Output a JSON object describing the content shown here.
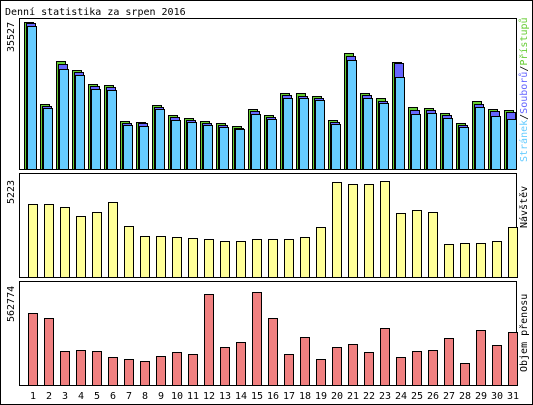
{
  "title": "Denní statistika za srpen 2016",
  "colors": {
    "background": "#ffffff",
    "frame": "#000000",
    "pages": "#66ccff",
    "files": "#6666ff",
    "hits": "#66cc33",
    "visits": "#ffff99",
    "bandwidth": "#f08080",
    "weekend_label": "#669933"
  },
  "chart_data": [
    {
      "type": "bar",
      "ylabel": "35527",
      "legend": {
        "hits": "Přístupů",
        "sep1": "/",
        "files": "Souborů",
        "sep2": "/",
        "pages": "Stránek"
      },
      "ylim": [
        0,
        35527
      ],
      "series": [
        {
          "key": "hits",
          "values": [
            34900,
            15500,
            25500,
            23500,
            20100,
            19900,
            11300,
            11200,
            15200,
            12700,
            12100,
            11300,
            10800,
            10200,
            14300,
            12900,
            18100,
            18000,
            17400,
            11600,
            27400,
            18100,
            16800,
            25400,
            14600,
            14500,
            13300,
            10900,
            16000,
            14200,
            14000
          ]
        },
        {
          "key": "files",
          "values": [
            34500,
            15000,
            24900,
            23000,
            19600,
            19400,
            10900,
            10800,
            14800,
            12300,
            11700,
            10900,
            10400,
            9800,
            13800,
            12400,
            17500,
            17400,
            16800,
            11100,
            26800,
            17500,
            16200,
            25100,
            14000,
            13900,
            12700,
            10400,
            15500,
            13700,
            13600
          ]
        },
        {
          "key": "pages",
          "values": [
            33800,
            14400,
            23700,
            22300,
            19000,
            18800,
            10400,
            10300,
            14100,
            11700,
            11200,
            10400,
            9900,
            9400,
            13100,
            11900,
            16800,
            16700,
            16300,
            10600,
            25900,
            16800,
            15600,
            21700,
            13100,
            13200,
            12100,
            9900,
            14600,
            12600,
            11900
          ]
        }
      ]
    },
    {
      "type": "bar",
      "ylabel": "5223",
      "legend": {
        "visits": "Návštěv"
      },
      "ylim": [
        0,
        5223
      ],
      "series": [
        {
          "key": "visits",
          "values": [
            3870,
            3870,
            3690,
            3200,
            3450,
            3980,
            2690,
            2150,
            2150,
            2090,
            2060,
            1990,
            1910,
            1880,
            2000,
            1990,
            2000,
            2100,
            2660,
            5000,
            4920,
            4920,
            5080,
            3400,
            3560,
            3420,
            1720,
            1790,
            1800,
            1880,
            2640
          ]
        }
      ]
    },
    {
      "type": "bar",
      "ylabel": "562774",
      "legend": {
        "bandwidth": "Objem přenosu"
      },
      "ylim": [
        0,
        562774
      ],
      "series": [
        {
          "key": "bandwidth",
          "values": [
            420000,
            390000,
            200000,
            202000,
            200000,
            160000,
            150000,
            140000,
            170000,
            190000,
            180000,
            530000,
            220000,
            250000,
            540000,
            390000,
            180000,
            280000,
            150000,
            220000,
            240000,
            190000,
            330000,
            160000,
            200000,
            205000,
            270000,
            130000,
            320000,
            230000,
            310000
          ]
        }
      ]
    }
  ],
  "days": [
    {
      "label": "1",
      "weekend": false
    },
    {
      "label": "2",
      "weekend": false
    },
    {
      "label": "3",
      "weekend": false
    },
    {
      "label": "4",
      "weekend": false
    },
    {
      "label": "5",
      "weekend": false
    },
    {
      "label": "6",
      "weekend": true
    },
    {
      "label": "7",
      "weekend": true
    },
    {
      "label": "8",
      "weekend": false
    },
    {
      "label": "9",
      "weekend": false
    },
    {
      "label": "10",
      "weekend": false
    },
    {
      "label": "11",
      "weekend": false
    },
    {
      "label": "12",
      "weekend": false
    },
    {
      "label": "13",
      "weekend": true
    },
    {
      "label": "14",
      "weekend": true
    },
    {
      "label": "15",
      "weekend": false
    },
    {
      "label": "16",
      "weekend": false
    },
    {
      "label": "17",
      "weekend": false
    },
    {
      "label": "18",
      "weekend": false
    },
    {
      "label": "19",
      "weekend": false
    },
    {
      "label": "20",
      "weekend": true
    },
    {
      "label": "21",
      "weekend": true
    },
    {
      "label": "22",
      "weekend": false
    },
    {
      "label": "23",
      "weekend": false
    },
    {
      "label": "24",
      "weekend": false
    },
    {
      "label": "25",
      "weekend": false
    },
    {
      "label": "26",
      "weekend": false
    },
    {
      "label": "27",
      "weekend": true
    },
    {
      "label": "28",
      "weekend": true
    },
    {
      "label": "29",
      "weekend": false
    },
    {
      "label": "30",
      "weekend": false
    },
    {
      "label": "31",
      "weekend": false
    }
  ]
}
